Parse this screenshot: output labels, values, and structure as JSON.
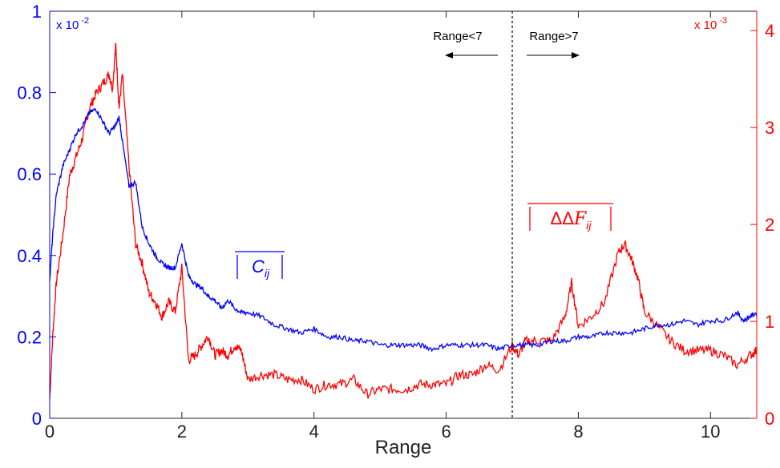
{
  "chart_data": {
    "type": "line",
    "xlabel": "Range",
    "xlim": [
      0,
      10.7
    ],
    "x_ticks": [
      0,
      2,
      4,
      6,
      8,
      10
    ],
    "x_tick_labels": [
      "0",
      "2",
      "4",
      "6",
      "8",
      "10"
    ],
    "grid": false,
    "left_axis": {
      "color": "#0000ff",
      "ylim": [
        0,
        1
      ],
      "ticks": [
        0,
        0.2,
        0.4,
        0.6,
        0.8,
        1
      ],
      "tick_labels": [
        "0",
        "0.2",
        "0.4",
        "0.6",
        "0.8",
        "1"
      ],
      "exponent_label": "x 10",
      "exponent_power": "-2"
    },
    "right_axis": {
      "color": "#ff0000",
      "ylim": [
        0,
        4.2
      ],
      "ticks": [
        0,
        1,
        2,
        3,
        4
      ],
      "tick_labels": [
        "0",
        "1",
        "2",
        "3",
        "4"
      ],
      "exponent_label": "x 10",
      "exponent_power": "-3"
    },
    "series": [
      {
        "name": "|C_ij|",
        "axis": "left",
        "color": "#0000ff",
        "x": [
          0,
          0.05,
          0.1,
          0.2,
          0.3,
          0.4,
          0.5,
          0.6,
          0.7,
          0.8,
          0.9,
          1.0,
          1.05,
          1.1,
          1.2,
          1.3,
          1.4,
          1.5,
          1.6,
          1.7,
          1.8,
          1.9,
          2.0,
          2.1,
          2.2,
          2.3,
          2.4,
          2.5,
          2.6,
          2.7,
          2.8,
          2.9,
          3.0,
          3.2,
          3.4,
          3.6,
          3.8,
          4.0,
          4.2,
          4.4,
          4.6,
          4.8,
          5.0,
          5.2,
          5.4,
          5.6,
          5.8,
          6.0,
          6.2,
          6.4,
          6.6,
          6.8,
          7.0,
          7.2,
          7.4,
          7.6,
          7.8,
          8.0,
          8.2,
          8.4,
          8.6,
          8.8,
          9.0,
          9.2,
          9.4,
          9.6,
          9.8,
          10.0,
          10.2,
          10.4,
          10.5,
          10.6,
          10.7
        ],
        "y": [
          0.34,
          0.46,
          0.55,
          0.62,
          0.66,
          0.7,
          0.72,
          0.75,
          0.76,
          0.73,
          0.7,
          0.72,
          0.74,
          0.68,
          0.57,
          0.58,
          0.47,
          0.43,
          0.4,
          0.38,
          0.37,
          0.37,
          0.43,
          0.35,
          0.33,
          0.32,
          0.3,
          0.29,
          0.27,
          0.29,
          0.27,
          0.26,
          0.26,
          0.25,
          0.23,
          0.22,
          0.21,
          0.22,
          0.2,
          0.2,
          0.19,
          0.19,
          0.18,
          0.18,
          0.18,
          0.18,
          0.17,
          0.18,
          0.18,
          0.18,
          0.18,
          0.17,
          0.18,
          0.18,
          0.18,
          0.19,
          0.19,
          0.2,
          0.2,
          0.21,
          0.21,
          0.21,
          0.22,
          0.23,
          0.23,
          0.24,
          0.23,
          0.24,
          0.24,
          0.26,
          0.24,
          0.25,
          0.26
        ]
      },
      {
        "name": "|ΔΔF_ij|",
        "axis": "right",
        "color": "#ff0000",
        "x": [
          0,
          0.05,
          0.1,
          0.2,
          0.3,
          0.4,
          0.5,
          0.6,
          0.7,
          0.8,
          0.9,
          0.95,
          1.0,
          1.05,
          1.1,
          1.2,
          1.3,
          1.4,
          1.5,
          1.6,
          1.7,
          1.8,
          1.9,
          2.0,
          2.1,
          2.2,
          2.3,
          2.4,
          2.5,
          2.6,
          2.7,
          2.8,
          2.9,
          3.0,
          3.2,
          3.4,
          3.6,
          3.8,
          4.0,
          4.2,
          4.4,
          4.6,
          4.8,
          5.0,
          5.2,
          5.4,
          5.6,
          5.8,
          6.0,
          6.2,
          6.4,
          6.6,
          6.8,
          7.0,
          7.1,
          7.2,
          7.4,
          7.6,
          7.8,
          7.9,
          8.0,
          8.2,
          8.4,
          8.6,
          8.7,
          8.8,
          8.9,
          9.0,
          9.2,
          9.4,
          9.6,
          9.8,
          10.0,
          10.2,
          10.4,
          10.6,
          10.7
        ],
        "y": [
          0.2,
          0.9,
          1.4,
          1.9,
          2.5,
          2.7,
          2.9,
          3.2,
          3.35,
          3.45,
          3.55,
          3.4,
          3.85,
          3.2,
          3.55,
          2.6,
          1.8,
          1.6,
          1.3,
          1.2,
          1.05,
          1.2,
          1.1,
          1.55,
          0.6,
          0.65,
          0.75,
          0.85,
          0.65,
          0.7,
          0.65,
          0.75,
          0.7,
          0.4,
          0.45,
          0.45,
          0.4,
          0.4,
          0.3,
          0.35,
          0.35,
          0.4,
          0.25,
          0.3,
          0.3,
          0.3,
          0.35,
          0.35,
          0.35,
          0.45,
          0.45,
          0.55,
          0.5,
          0.75,
          0.65,
          0.8,
          0.8,
          0.8,
          1.05,
          1.4,
          0.95,
          1.05,
          1.2,
          1.7,
          1.8,
          1.65,
          1.45,
          1.1,
          0.95,
          0.8,
          0.7,
          0.7,
          0.7,
          0.65,
          0.55,
          0.65,
          0.7
        ]
      }
    ],
    "annotations": {
      "blue_series_label": "|C_ij|",
      "red_series_label": "|ΔΔF_ij|",
      "left_region_text": "Range<7",
      "right_region_text": "Range>7",
      "divider_x": 7
    }
  }
}
